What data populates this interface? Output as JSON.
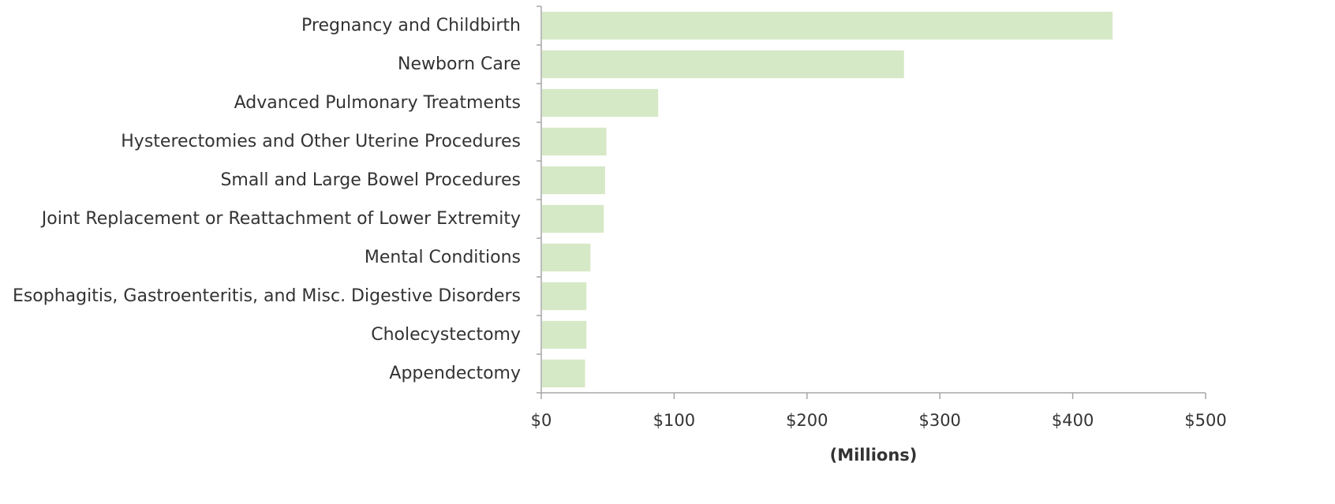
{
  "chart_data": {
    "type": "bar",
    "orientation": "horizontal",
    "title": "",
    "xlabel": "(Millions)",
    "ylabel": "",
    "categories": [
      "Pregnancy and Childbirth",
      "Newborn Care",
      "Advanced Pulmonary Treatments",
      "Hysterectomies and Other Uterine Procedures",
      "Small and Large Bowel Procedures",
      "Joint Replacement or Reattachment of Lower Extremity",
      "Mental Conditions",
      "Esophagitis, Gastroenteritis, and Misc. Digestive Disorders",
      "Cholecystectomy",
      "Appendectomy"
    ],
    "values": [
      430,
      273,
      88,
      49,
      48,
      47,
      37,
      34,
      34,
      33
    ],
    "xlim": [
      0,
      500
    ],
    "ticks": [
      0,
      100,
      200,
      300,
      400,
      500
    ],
    "tick_labels": [
      "$0",
      "$100",
      "$200",
      "$300",
      "$400",
      "$500"
    ],
    "bar_color": "#d6e9c6",
    "axis_color": "#a6a6a6",
    "grid": false,
    "legend": "none"
  }
}
